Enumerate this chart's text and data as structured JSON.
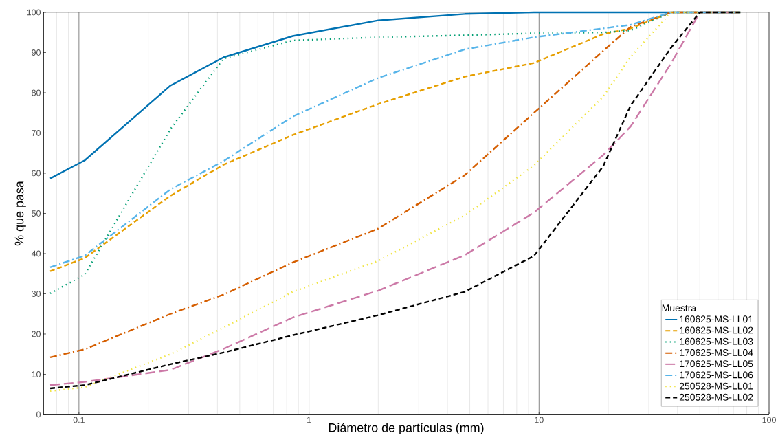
{
  "chart_data": {
    "type": "line",
    "xlabel": "Diámetro de partículas (mm)",
    "ylabel": "% que pasa",
    "legend_title": "Muestra",
    "log": "x",
    "grid": "x",
    "legend": "bottom right",
    "x": [
      0.075,
      0.106,
      0.25,
      0.425,
      0.85,
      2,
      4.75,
      9.5,
      19,
      25,
      37.5,
      50,
      75
    ],
    "xlim": [
      0.07,
      100
    ],
    "xticks": [
      0.1,
      1,
      10,
      100
    ],
    "ylim": [
      0,
      100
    ],
    "yticks": [
      0,
      10,
      20,
      30,
      40,
      50,
      60,
      70,
      80,
      90,
      100
    ],
    "series": [
      {
        "name": "160625-MS-LL01",
        "color": "#0072b2",
        "line_style": "solid",
        "values": [
          58.7,
          63.2,
          81.8,
          88.8,
          94.1,
          98,
          99.6,
          100,
          100,
          100,
          100,
          100,
          100
        ]
      },
      {
        "name": "160625-MS-LL02",
        "color": "#e69f00",
        "line_style": "dashed",
        "values": [
          35.6,
          38.9,
          54.4,
          62.1,
          69.5,
          77.2,
          84,
          87.4,
          94.6,
          96,
          100,
          100,
          100
        ]
      },
      {
        "name": "160625-MS-LL03",
        "color": "#009e73",
        "line_style": "dotted",
        "values": [
          30.1,
          34.8,
          71,
          88.5,
          93,
          93.8,
          94.3,
          94.8,
          95,
          95.5,
          100,
          100,
          100
        ]
      },
      {
        "name": "170625-MS-LL04",
        "color": "#d55e00",
        "line_style": "dashdot",
        "values": [
          14.2,
          16.2,
          25,
          29.8,
          37.8,
          46.2,
          59.5,
          75,
          90.4,
          96.4,
          100,
          100,
          100
        ]
      },
      {
        "name": "170625-MS-LL05",
        "color": "#cc79a7",
        "line_style": "longdashed",
        "values": [
          7.3,
          8.1,
          11.1,
          16.3,
          24.1,
          30.8,
          39.6,
          50.2,
          64.5,
          71.6,
          87.3,
          100,
          100
        ]
      },
      {
        "name": "170625-MS-LL06",
        "color": "#56b4e9",
        "line_style": "dashdot",
        "values": [
          36.6,
          39.5,
          56,
          63,
          74.1,
          83.7,
          90.8,
          93.8,
          96,
          96.9,
          100,
          100,
          100
        ]
      },
      {
        "name": "250528-MS-LL01",
        "color": "#f0e442",
        "line_style": "dotted",
        "values": [
          5.8,
          6.8,
          15,
          21.6,
          30.5,
          38.2,
          49.5,
          61.9,
          79,
          88.9,
          100,
          100,
          100
        ]
      },
      {
        "name": "250528-MS-LL02",
        "color": "#000000",
        "line_style": "dashed",
        "values": [
          6.5,
          7.3,
          12.5,
          15.4,
          19.7,
          24.7,
          30.5,
          39.4,
          61.7,
          76.8,
          91.2,
          100,
          100
        ]
      }
    ]
  }
}
